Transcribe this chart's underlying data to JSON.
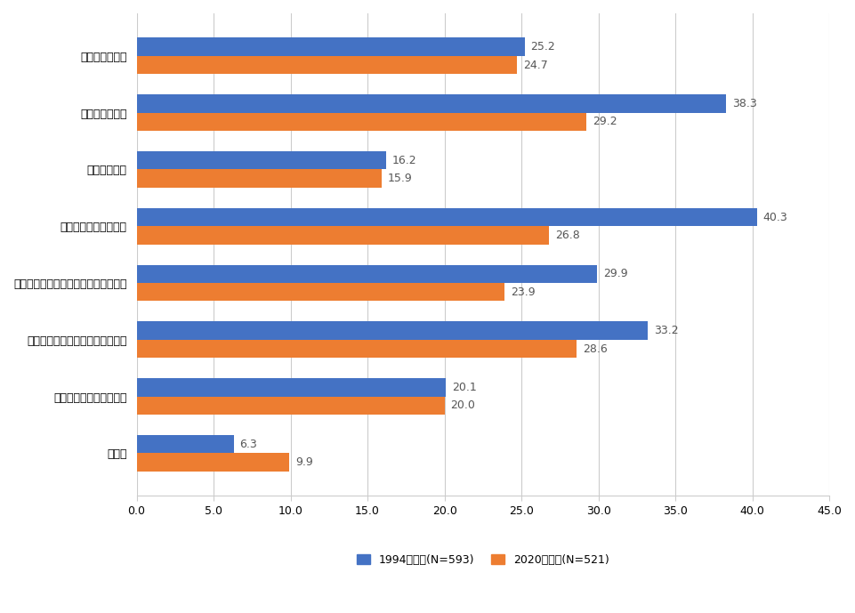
{
  "categories": [
    "技術情報の秘匿",
    "特許による保護",
    "他の法的保護",
    "製品の先行的な市場化",
    "製品の販売・サービス網の保有・管理",
    "製造設備やノウハウの保有・管理",
    "生産、製品設計の複雑性",
    "その他"
  ],
  "values_1994": [
    25.2,
    38.3,
    16.2,
    40.3,
    29.9,
    33.2,
    20.1,
    6.3
  ],
  "values_2020": [
    24.7,
    29.2,
    15.9,
    26.8,
    23.9,
    28.6,
    20.0,
    9.9
  ],
  "color_1994": "#4472C4",
  "color_2020": "#ED7D31",
  "legend_1994": "1994年調査(N=593)",
  "legend_2020": "2020年調査(N=521)",
  "xlim": [
    0,
    45
  ],
  "xticks": [
    0.0,
    5.0,
    10.0,
    15.0,
    20.0,
    25.0,
    30.0,
    35.0,
    40.0,
    45.0
  ],
  "bar_height": 0.32,
  "label_fontsize": 9,
  "tick_fontsize": 9,
  "legend_fontsize": 9,
  "background_color": "#ffffff",
  "grid_color": "#cccccc"
}
